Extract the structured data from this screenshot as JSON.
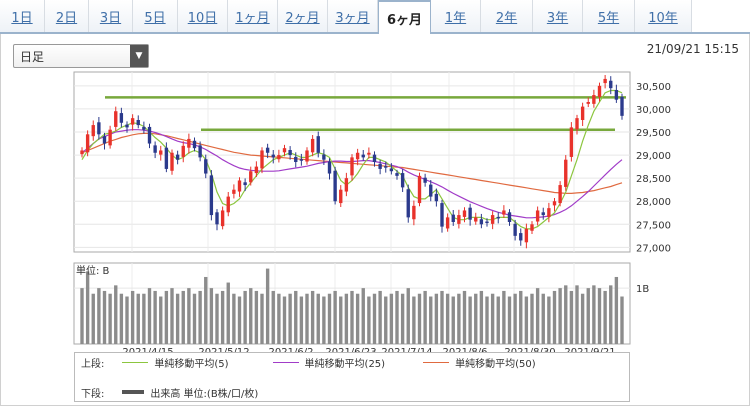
{
  "tabs": [
    {
      "label": "1日",
      "active": false
    },
    {
      "label": "2日",
      "active": false
    },
    {
      "label": "3日",
      "active": false
    },
    {
      "label": "5日",
      "active": false
    },
    {
      "label": "10日",
      "active": false
    },
    {
      "label": "1ヶ月",
      "active": false
    },
    {
      "label": "2ヶ月",
      "active": false
    },
    {
      "label": "3ヶ月",
      "active": false
    },
    {
      "label": "6ヶ月",
      "active": true
    },
    {
      "label": "1年",
      "active": false
    },
    {
      "label": "2年",
      "active": false
    },
    {
      "label": "3年",
      "active": false
    },
    {
      "label": "5年",
      "active": false
    },
    {
      "label": "10年",
      "active": false
    }
  ],
  "period_select": {
    "value": "日足"
  },
  "timestamp": "21/09/21 15:15",
  "volume_unit_label": "単位: B",
  "legend": {
    "upper_label": "上段:",
    "lower_label": "下段:",
    "ma5": "単純移動平均(5)",
    "ma25": "単純移動平均(25)",
    "ma50": "単純移動平均(50)",
    "volume": "出来高 単位:(B株/口/枚)"
  },
  "colors": {
    "up": "#e8322b",
    "down": "#2b3a8c",
    "ma5": "#8cc63f",
    "ma25": "#a13cc8",
    "ma50": "#e06a40",
    "hline": "#78a83c",
    "volume": "#8c8c8c"
  },
  "chart_data": [
    {
      "type": "candlestick",
      "title": "",
      "x_tick_labels": [
        "2021/4/15",
        "2021/5/12",
        "2021/6/2",
        "2021/6/23",
        "2021/7/14",
        "2021/8/6",
        "2021/8/30",
        "2021/9/21"
      ],
      "y_tick_labels": [
        "30,500",
        "30,000",
        "29,500",
        "29,000",
        "28,500",
        "28,000",
        "27,500",
        "27,000"
      ],
      "ylim": [
        26900,
        30800
      ],
      "horizontal_lines": [
        30250,
        29550
      ],
      "close": [
        29100,
        29450,
        29650,
        29450,
        29250,
        29550,
        29950,
        29700,
        29600,
        29800,
        29650,
        29550,
        29250,
        29050,
        29100,
        28700,
        29050,
        28900,
        29200,
        29350,
        29150,
        28950,
        28600,
        27700,
        27500,
        27800,
        28100,
        28250,
        28450,
        28350,
        28650,
        28750,
        29100,
        29050,
        28950,
        29000,
        29150,
        29000,
        28850,
        28900,
        29100,
        29350,
        29050,
        28900,
        28600,
        28000,
        28250,
        28500,
        28950,
        29050,
        28950,
        29050,
        28850,
        28700,
        28750,
        28650,
        28550,
        28300,
        27650,
        27900,
        28550,
        28400,
        28100,
        28000,
        27450,
        27650,
        27550,
        27700,
        27800,
        27600,
        27650,
        27500,
        27550,
        27700,
        27650,
        27800,
        27550,
        27250,
        27150,
        27400,
        27500,
        27800,
        27700,
        27850,
        28000,
        28350,
        28900,
        29600,
        29800,
        30050,
        30150,
        30300,
        30500,
        30650,
        30450,
        30200,
        29850
      ],
      "ma5": [
        28900,
        29100,
        29250,
        29350,
        29450,
        29480,
        29520,
        29600,
        29650,
        29700,
        29680,
        29620,
        29500,
        29380,
        29280,
        29150,
        29000,
        28900,
        28950,
        29050,
        29100,
        29050,
        28900,
        28600,
        28200,
        27950,
        27900,
        27950,
        28050,
        28250,
        28400,
        28550,
        28700,
        28800,
        28900,
        28950,
        29000,
        29050,
        29000,
        28950,
        28950,
        29000,
        29050,
        29020,
        28950,
        28700,
        28450,
        28350,
        28450,
        28600,
        28800,
        28950,
        28950,
        28900,
        28850,
        28750,
        28650,
        28550,
        28300,
        28100,
        28050,
        28050,
        28150,
        28250,
        28050,
        27850,
        27650,
        27600,
        27600,
        27650,
        27650,
        27650,
        27600,
        27600,
        27650,
        27650,
        27650,
        27550,
        27450,
        27400,
        27400,
        27450,
        27550,
        27650,
        27750,
        27950,
        28200,
        28550,
        28900,
        29300,
        29650,
        29950,
        30150,
        30350,
        30400,
        30400,
        30350
      ],
      "ma25": [
        29050,
        29150,
        29250,
        29350,
        29400,
        29450,
        29500,
        29520,
        29540,
        29550,
        29550,
        29540,
        29520,
        29490,
        29450,
        29400,
        29350,
        29300,
        29270,
        29250,
        29220,
        29180,
        29120,
        29050,
        28980,
        28900,
        28830,
        28770,
        28720,
        28690,
        28670,
        28660,
        28650,
        28650,
        28650,
        28660,
        28680,
        28700,
        28720,
        28740,
        28760,
        28790,
        28820,
        28840,
        28860,
        28870,
        28870,
        28860,
        28860,
        28870,
        28880,
        28880,
        28860,
        28840,
        28810,
        28780,
        28750,
        28700,
        28630,
        28570,
        28520,
        28470,
        28420,
        28370,
        28310,
        28240,
        28170,
        28110,
        28050,
        27990,
        27940,
        27890,
        27840,
        27800,
        27760,
        27730,
        27700,
        27680,
        27660,
        27640,
        27640,
        27650,
        27660,
        27680,
        27710,
        27760,
        27820,
        27900,
        28000,
        28100,
        28210,
        28330,
        28450,
        28570,
        28690,
        28800,
        28900
      ],
      "ma50": [
        29050,
        29100,
        29150,
        29200,
        29250,
        29300,
        29340,
        29380,
        29410,
        29440,
        29460,
        29470,
        29470,
        29460,
        29440,
        29420,
        29390,
        29360,
        29330,
        29300,
        29270,
        29240,
        29210,
        29180,
        29150,
        29120,
        29090,
        29060,
        29040,
        29020,
        29000,
        28990,
        28980,
        28970,
        28960,
        28950,
        28940,
        28930,
        28920,
        28910,
        28900,
        28890,
        28880,
        28870,
        28860,
        28850,
        28840,
        28830,
        28820,
        28810,
        28800,
        28790,
        28780,
        28770,
        28760,
        28750,
        28740,
        28730,
        28710,
        28690,
        28670,
        28650,
        28630,
        28610,
        28590,
        28570,
        28550,
        28530,
        28510,
        28490,
        28470,
        28450,
        28430,
        28410,
        28390,
        28370,
        28350,
        28330,
        28310,
        28290,
        28270,
        28250,
        28230,
        28210,
        28190,
        28180,
        28170,
        28170,
        28180,
        28190,
        28210,
        28230,
        28260,
        28290,
        28320,
        28360,
        28400
      ]
    },
    {
      "type": "bar",
      "title": "",
      "ylabel": "単位: B",
      "y_tick_labels": [
        "1B"
      ],
      "ylim": [
        0,
        1.45
      ],
      "values": [
        1.0,
        1.3,
        0.9,
        1.0,
        0.95,
        0.9,
        1.05,
        0.9,
        0.85,
        0.95,
        0.9,
        0.9,
        1.0,
        0.95,
        0.85,
        0.95,
        1.0,
        0.9,
        0.95,
        1.0,
        0.9,
        0.95,
        1.2,
        1.0,
        0.9,
        0.95,
        1.1,
        0.9,
        0.85,
        0.95,
        1.0,
        0.95,
        0.9,
        1.35,
        0.95,
        0.9,
        0.85,
        0.9,
        0.95,
        0.85,
        0.9,
        0.95,
        0.9,
        0.85,
        0.9,
        0.95,
        0.85,
        0.9,
        0.95,
        0.9,
        1.0,
        0.85,
        0.9,
        0.95,
        0.85,
        0.9,
        0.95,
        0.9,
        1.0,
        0.85,
        0.9,
        0.95,
        0.85,
        0.9,
        0.95,
        0.9,
        0.85,
        0.9,
        0.95,
        0.85,
        0.9,
        0.95,
        0.85,
        0.9,
        0.85,
        0.95,
        0.85,
        0.9,
        0.95,
        0.85,
        0.9,
        1.0,
        0.9,
        0.85,
        0.95,
        1.0,
        1.05,
        0.95,
        1.05,
        0.9,
        1.0,
        1.05,
        1.0,
        0.95,
        1.05,
        1.2,
        0.85
      ]
    }
  ]
}
